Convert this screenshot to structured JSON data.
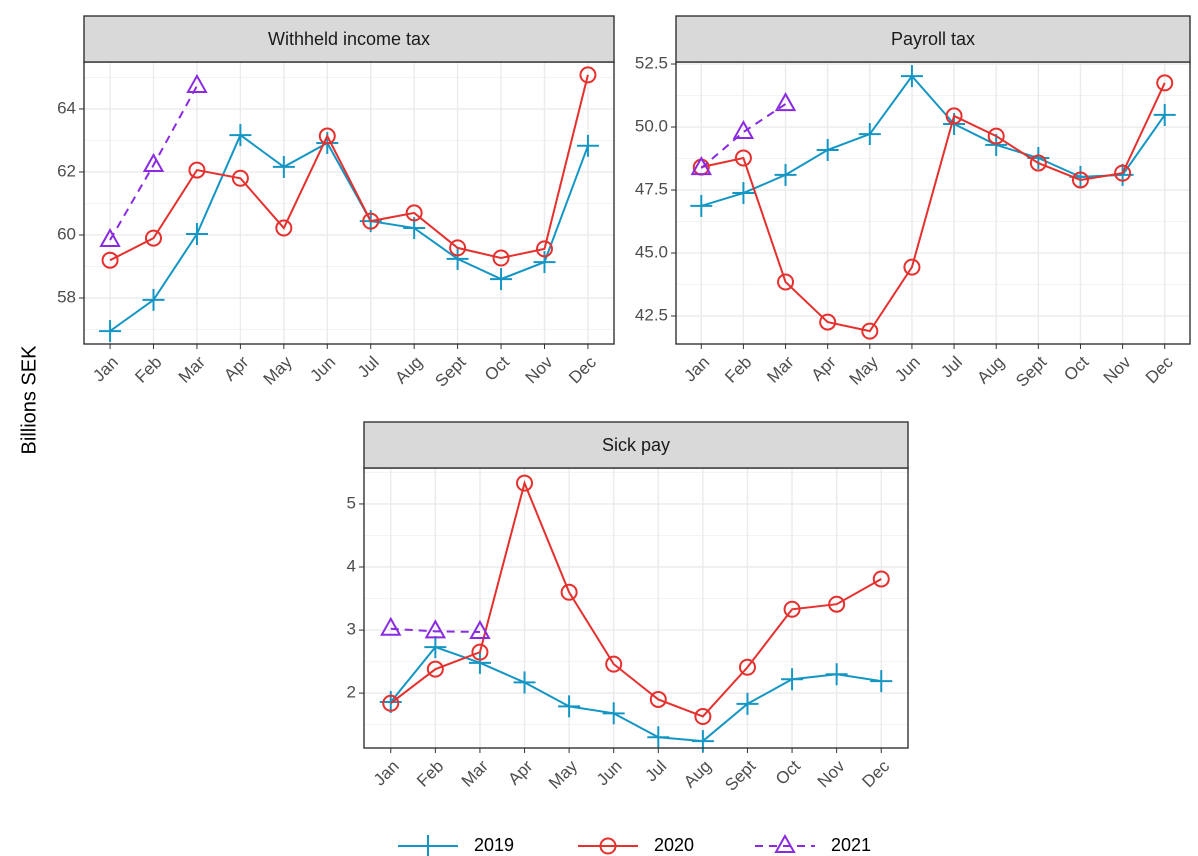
{
  "ylabel": "Billions SEK",
  "chart_data": [
    {
      "type": "line",
      "title": "Withheld income tax",
      "categories": [
        "Jan",
        "Feb",
        "Mar",
        "Apr",
        "May",
        "Jun",
        "Jul",
        "Aug",
        "Sept",
        "Oct",
        "Nov",
        "Dec"
      ],
      "ylim": [
        56.54,
        65.49
      ],
      "yticks": [
        58,
        60,
        62,
        64
      ],
      "grid": true,
      "series": [
        {
          "name": "2019",
          "color": "#1496c4",
          "marker": "plus",
          "dashed": false,
          "values": [
            56.95,
            57.94,
            60.03,
            63.17,
            62.16,
            62.92,
            60.44,
            60.22,
            59.24,
            58.6,
            59.14,
            62.83
          ]
        },
        {
          "name": "2020",
          "color": "#e5302d",
          "marker": "circle",
          "dashed": false,
          "values": [
            59.2,
            59.9,
            62.06,
            61.8,
            60.22,
            63.14,
            60.44,
            60.7,
            59.59,
            59.27,
            59.56,
            65.08
          ]
        },
        {
          "name": "2021",
          "color": "#8a2be2",
          "marker": "triangle",
          "dashed": true,
          "values": [
            59.84,
            62.22,
            64.73,
            null,
            null,
            null,
            null,
            null,
            null,
            null,
            null,
            null
          ]
        }
      ]
    },
    {
      "type": "line",
      "title": "Payroll tax",
      "categories": [
        "Jan",
        "Feb",
        "Mar",
        "Apr",
        "May",
        "Jun",
        "Jul",
        "Aug",
        "Sept",
        "Oct",
        "Nov",
        "Dec"
      ],
      "ylim": [
        41.39,
        52.58
      ],
      "yticks": [
        42.5,
        {
          "value": 45,
          "label": "45.0"
        },
        47.5,
        {
          "value": 50,
          "label": "50.0"
        },
        52.5
      ],
      "grid": true,
      "series": [
        {
          "name": "2019",
          "color": "#1496c4",
          "marker": "plus",
          "dashed": false,
          "values": [
            46.87,
            47.38,
            48.1,
            49.09,
            49.72,
            52.02,
            50.12,
            49.29,
            48.77,
            48.02,
            48.1,
            50.48
          ]
        },
        {
          "name": "2020",
          "color": "#e5302d",
          "marker": "circle",
          "dashed": false,
          "values": [
            48.41,
            48.77,
            43.85,
            42.26,
            41.9,
            44.44,
            50.44,
            49.64,
            48.57,
            47.9,
            48.17,
            51.75
          ]
        },
        {
          "name": "2021",
          "color": "#8a2be2",
          "marker": "triangle",
          "dashed": true,
          "values": [
            48.37,
            49.8,
            50.91,
            null,
            null,
            null,
            null,
            null,
            null,
            null,
            null,
            null
          ]
        }
      ]
    },
    {
      "type": "line",
      "title": "Sick pay",
      "categories": [
        "Jan",
        "Feb",
        "Mar",
        "Apr",
        "May",
        "Jun",
        "Jul",
        "Aug",
        "Sept",
        "Oct",
        "Nov",
        "Dec"
      ],
      "ylim": [
        1.13,
        5.57
      ],
      "yticks": [
        2,
        3,
        4,
        5
      ],
      "grid": true,
      "series": [
        {
          "name": "2019",
          "color": "#1496c4",
          "marker": "plus",
          "dashed": false,
          "values": [
            1.86,
            2.73,
            2.48,
            2.17,
            1.79,
            1.68,
            1.3,
            1.24,
            1.83,
            2.22,
            2.3,
            2.19
          ]
        },
        {
          "name": "2020",
          "color": "#e5302d",
          "marker": "circle",
          "dashed": false,
          "values": [
            1.84,
            2.38,
            2.65,
            5.33,
            3.6,
            2.46,
            1.9,
            1.63,
            2.41,
            3.33,
            3.41,
            3.81
          ]
        },
        {
          "name": "2021",
          "color": "#8a2be2",
          "marker": "triangle",
          "dashed": true,
          "values": [
            3.02,
            2.98,
            2.97,
            null,
            null,
            null,
            null,
            null,
            null,
            null,
            null,
            null
          ]
        }
      ]
    }
  ]
}
